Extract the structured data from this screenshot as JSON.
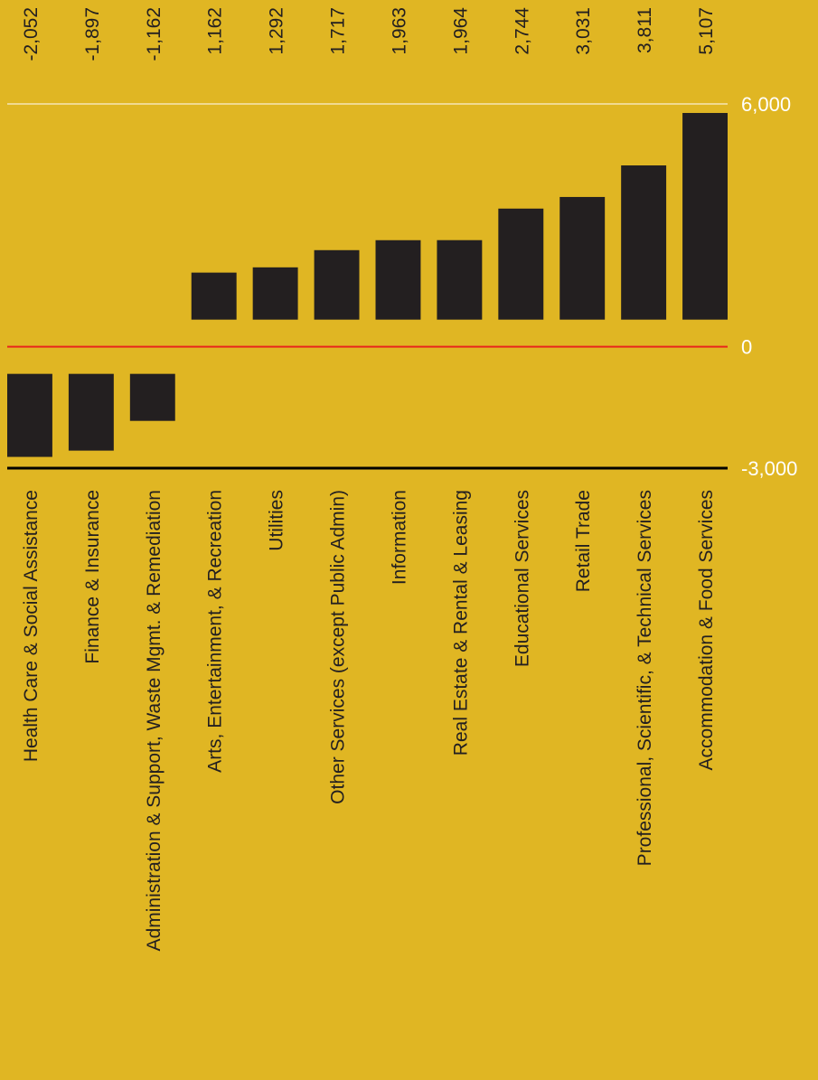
{
  "colors": {
    "background": "#E0B623",
    "bar": "#231F20",
    "grid": "#FFFFFF",
    "zero_line": "#E8261C",
    "axis_line": "#000000",
    "text_dark": "#231F20",
    "text_light": "#FFFFFF"
  },
  "chart_data": {
    "type": "bar",
    "orientation": "vertical-columns",
    "categories": [
      "Health Care & Social Assistance",
      "Finance & Insurance",
      "Administration & Support, Waste Mgmt. & Remediation",
      "Arts, Entertainment, & Recreation",
      "Utilities",
      "Other Services (except Public Admin)",
      "Information",
      "Real Estate & Rental & Leasing",
      "Educational Services",
      "Retail Trade",
      "Professional, Scientific, & Technical Services",
      "Accommodation & Food Services"
    ],
    "values": [
      -2052,
      -1897,
      -1162,
      1162,
      1292,
      1717,
      1963,
      1964,
      2744,
      3031,
      3811,
      5107
    ],
    "value_labels": [
      "-2,052",
      "-1,897",
      "-1,162",
      "1,162",
      "1,292",
      "1,717",
      "1,963",
      "1,964",
      "2,744",
      "3,031",
      "3,811",
      "5,107"
    ],
    "ylim": [
      -3000,
      6000
    ],
    "y_ticks": [
      {
        "value": 6000,
        "label": "6,000"
      },
      {
        "value": 0,
        "label": "0"
      },
      {
        "value": -3000,
        "label": "-3,000"
      }
    ],
    "grid": true,
    "legend": "none",
    "title": "",
    "xlabel": "",
    "ylabel": ""
  }
}
